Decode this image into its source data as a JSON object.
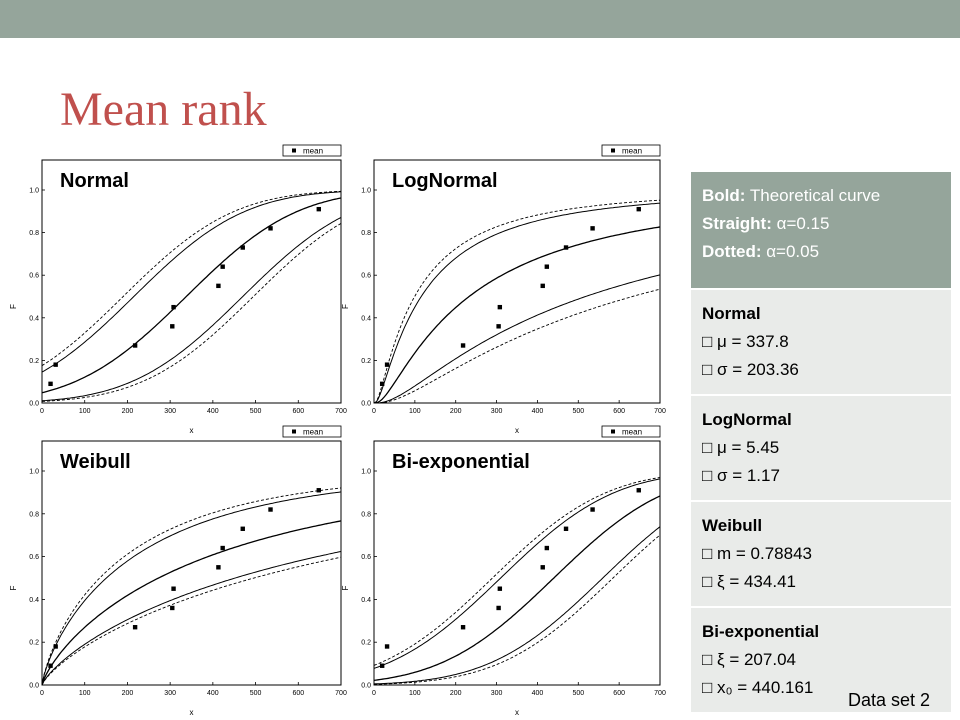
{
  "colors": {
    "topbar": "#95a59b",
    "title": "#c0504d",
    "panel_head": "#95a59b",
    "panel_body": "#e9ebe9"
  },
  "slide": {
    "title": "Mean rank",
    "footer": "Data set 2"
  },
  "info_panel": {
    "legend_lines": [
      {
        "key": "Bold:",
        "value": " Theoretical curve"
      },
      {
        "key": "Straight:",
        "value": " α=0.15"
      },
      {
        "key": "Dotted:",
        "value": " α=0.05"
      }
    ],
    "sections": [
      {
        "name": "Normal",
        "params": [
          "□ μ = 337.8",
          "□ σ = 203.36"
        ]
      },
      {
        "name": "LogNormal",
        "params": [
          "□ μ = 5.45",
          "□ σ = 1.17"
        ]
      },
      {
        "name": "Weibull",
        "params": [
          "□ m = 0.78843",
          "□ ξ = 434.41"
        ]
      },
      {
        "name": "Bi-exponential",
        "params": [
          "□ ξ = 207.04",
          "□ x₀ = 440.161"
        ]
      }
    ]
  },
  "chart_data": [
    {
      "type": "scatter",
      "title": "Normal",
      "xlabel": "x",
      "ylabel": "F",
      "xlim": [
        0,
        700
      ],
      "ylim": [
        0,
        1.0
      ],
      "xticks": [
        0,
        100,
        200,
        300,
        400,
        500,
        600,
        700
      ],
      "yticks": [
        0.0,
        0.2,
        0.4,
        0.6,
        0.8,
        1.0
      ],
      "legend": [
        "mean"
      ],
      "legend_position": "top-right",
      "x": [
        20,
        32,
        218,
        305,
        308,
        413,
        423,
        470,
        535,
        648
      ],
      "y": [
        0.09,
        0.18,
        0.27,
        0.36,
        0.45,
        0.55,
        0.64,
        0.73,
        0.82,
        0.91
      ]
    },
    {
      "type": "scatter",
      "title": "LogNormal",
      "xlabel": "x",
      "ylabel": "F",
      "xlim": [
        0,
        700
      ],
      "ylim": [
        0,
        1.0
      ],
      "xticks": [
        0,
        100,
        200,
        300,
        400,
        500,
        600,
        700
      ],
      "yticks": [
        0.0,
        0.2,
        0.4,
        0.6,
        0.8,
        1.0
      ],
      "legend": [
        "mean"
      ],
      "legend_position": "top-right",
      "x": [
        20,
        32,
        218,
        305,
        308,
        413,
        423,
        470,
        535,
        648
      ],
      "y": [
        0.09,
        0.18,
        0.27,
        0.36,
        0.45,
        0.55,
        0.64,
        0.73,
        0.82,
        0.91
      ]
    },
    {
      "type": "scatter",
      "title": "Weibull",
      "xlabel": "x",
      "ylabel": "F",
      "xlim": [
        0,
        700
      ],
      "ylim": [
        0,
        1.0
      ],
      "xticks": [
        0,
        100,
        200,
        300,
        400,
        500,
        600,
        700
      ],
      "yticks": [
        0.0,
        0.2,
        0.4,
        0.6,
        0.8,
        1.0
      ],
      "legend": [
        "mean"
      ],
      "legend_position": "top-right",
      "x": [
        20,
        32,
        218,
        305,
        308,
        413,
        423,
        470,
        535,
        648
      ],
      "y": [
        0.09,
        0.18,
        0.27,
        0.36,
        0.45,
        0.55,
        0.64,
        0.73,
        0.82,
        0.91
      ]
    },
    {
      "type": "scatter",
      "title": "Bi-exponential",
      "xlabel": "x",
      "ylabel": "F",
      "xlim": [
        0,
        700
      ],
      "ylim": [
        0,
        1.0
      ],
      "xticks": [
        0,
        100,
        200,
        300,
        400,
        500,
        600,
        700
      ],
      "yticks": [
        0.0,
        0.2,
        0.4,
        0.6,
        0.8,
        1.0
      ],
      "legend": [
        "mean"
      ],
      "legend_position": "top-right",
      "x": [
        20,
        32,
        218,
        305,
        308,
        413,
        423,
        470,
        535,
        648
      ],
      "y": [
        0.09,
        0.18,
        0.27,
        0.36,
        0.45,
        0.55,
        0.64,
        0.73,
        0.82,
        0.91
      ]
    }
  ]
}
